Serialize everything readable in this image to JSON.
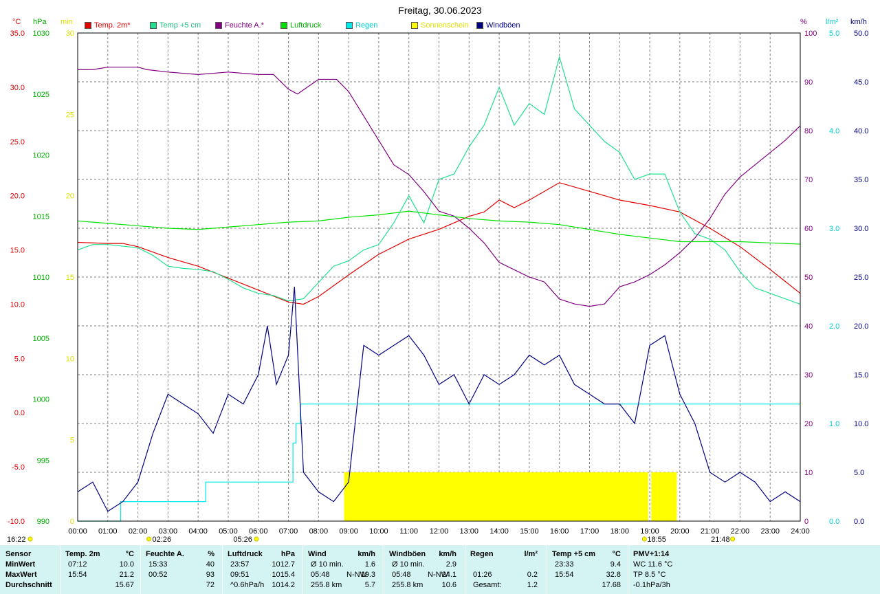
{
  "title": "Freitag, 30.06.2023",
  "axis_units": {
    "temp": "°C",
    "pressure": "hPa",
    "sunshine": "min",
    "humidity": "%",
    "rain": "l/m²",
    "wind": "km/h"
  },
  "colors": {
    "temp2m": "#e00000",
    "temp5cm": "#20e090",
    "humidity": "#800080",
    "pressure": "#00e000",
    "rain": "#00e8e8",
    "sunshine": "#ffff00",
    "gusts": "#000080",
    "stats_bg": "#d4f4f4"
  },
  "legend": [
    {
      "label": "Temp. 2m*",
      "color": "#e00000",
      "text_color": "#e00000"
    },
    {
      "label": "Temp +5 cm",
      "color": "#20e090",
      "text_color": "#20c080"
    },
    {
      "label": "Feuchte A.*",
      "color": "#800080",
      "text_color": "#800080"
    },
    {
      "label": "Luftdruck",
      "color": "#00e000",
      "text_color": "#00b000"
    },
    {
      "label": "Regen",
      "color": "#00e8e8",
      "text_color": "#00d0d0"
    },
    {
      "label": "Sonnenschein",
      "color": "#ffff00",
      "text_color": "#e0e000"
    },
    {
      "label": "Windböen",
      "color": "#000080",
      "text_color": "#000080"
    }
  ],
  "markers": {
    "sunrise": "02:26",
    "moonset": "05:26",
    "sunset": "18:55",
    "moonrise_left": "16:22",
    "moonrise_right": "21:48"
  },
  "chart_data": {
    "type": "line",
    "x_ticks": [
      "00:00",
      "01:00",
      "02:00",
      "03:00",
      "04:00",
      "05:00",
      "06:00",
      "07:00",
      "08:00",
      "09:00",
      "10:00",
      "11:00",
      "12:00",
      "13:00",
      "14:00",
      "15:00",
      "16:00",
      "17:00",
      "18:00",
      "19:00",
      "20:00",
      "21:00",
      "22:00",
      "23:00",
      "24:00"
    ],
    "xlim": [
      0,
      24
    ],
    "axes": {
      "temp": {
        "ylim": [
          -10,
          35
        ],
        "ticks": [
          "-10.0",
          "-5.0",
          "0.0",
          "5.0",
          "10.0",
          "15.0",
          "20.0",
          "25.0",
          "30.0",
          "35.0"
        ]
      },
      "pressure": {
        "ylim": [
          990,
          1030
        ],
        "ticks": [
          "990",
          "995",
          "1000",
          "1005",
          "1010",
          "1015",
          "1020",
          "1025",
          "1030"
        ]
      },
      "sunshine": {
        "ylim": [
          0,
          30
        ],
        "ticks": [
          "0",
          "5",
          "10",
          "15",
          "20",
          "25",
          "30"
        ]
      },
      "humidity": {
        "ylim": [
          0,
          100
        ],
        "ticks": [
          "0",
          "10",
          "20",
          "30",
          "40",
          "50",
          "60",
          "70",
          "80",
          "90",
          "100"
        ]
      },
      "rain": {
        "ylim": [
          0,
          5
        ],
        "ticks": [
          "0.0",
          "1.0",
          "2.0",
          "3.0",
          "4.0",
          "5.0"
        ]
      },
      "wind": {
        "ylim": [
          0,
          50
        ],
        "ticks": [
          "0.0",
          "5.0",
          "10.0",
          "15.0",
          "20.0",
          "25.0",
          "30.0",
          "35.0",
          "40.0",
          "45.0",
          "50.0"
        ]
      }
    },
    "series": [
      {
        "name": "Temp. 2m*",
        "axis": "temp",
        "x": [
          0,
          1,
          1.5,
          2,
          3,
          4,
          5,
          6,
          7,
          7.5,
          8,
          9,
          10,
          11,
          12,
          13,
          13.5,
          14,
          14.5,
          15,
          16,
          17,
          18,
          19,
          20,
          21,
          22,
          23,
          24
        ],
        "y": [
          15.7,
          15.6,
          15.6,
          15.3,
          14.3,
          13.5,
          12.4,
          11.3,
          10.2,
          10.0,
          10.7,
          12.7,
          14.6,
          16.0,
          16.9,
          18.1,
          18.5,
          19.6,
          18.9,
          19.6,
          21.2,
          20.4,
          19.6,
          19.1,
          18.5,
          17.0,
          15.3,
          13.2,
          11.0
        ]
      },
      {
        "name": "Temp +5 cm",
        "axis": "temp",
        "x": [
          0,
          0.5,
          1,
          2,
          2.5,
          3,
          3.5,
          4,
          4.5,
          5,
          5.5,
          6,
          6.5,
          7,
          7.5,
          8,
          8.5,
          9,
          9.5,
          10,
          10.5,
          11,
          11.5,
          12,
          12.5,
          13,
          13.5,
          14,
          14.5,
          15,
          15.5,
          16,
          16.5,
          17,
          17.5,
          18,
          18.5,
          19,
          19.5,
          20,
          20.5,
          21,
          21.5,
          22,
          22.5,
          23,
          23.5,
          24
        ],
        "y": [
          15.0,
          15.5,
          15.5,
          15.2,
          14.5,
          13.5,
          13.3,
          13.2,
          13.0,
          12.3,
          11.5,
          11.0,
          10.8,
          10.3,
          10.5,
          12.0,
          13.5,
          14.0,
          15.0,
          15.5,
          17.5,
          20.0,
          17.5,
          21.5,
          22.0,
          24.5,
          26.5,
          30.0,
          26.5,
          28.5,
          27.5,
          32.8,
          28.0,
          26.5,
          25.0,
          24.0,
          21.5,
          22.0,
          22.0,
          18.5,
          16.5,
          16.0,
          15.0,
          13.0,
          11.5,
          11.0,
          10.5,
          10.0
        ]
      },
      {
        "name": "Feuchte A.*",
        "axis": "humidity",
        "x": [
          0,
          0.5,
          1,
          2,
          2.3,
          3,
          4,
          5,
          6,
          6.5,
          7,
          7.3,
          8,
          8.6,
          9,
          9.5,
          10,
          10.5,
          11,
          11.5,
          12,
          12.5,
          13,
          13.5,
          14,
          14.5,
          15,
          15.5,
          16,
          16.5,
          17,
          17.5,
          18,
          18.5,
          19,
          19.5,
          20,
          20.5,
          21,
          21.5,
          22,
          22.5,
          23,
          23.5,
          24
        ],
        "y": [
          92.5,
          92.5,
          93,
          93,
          92.5,
          92,
          91.5,
          92,
          91.5,
          91.5,
          88.5,
          87.5,
          90.5,
          90.5,
          88,
          83,
          78,
          73,
          71,
          67.5,
          63.5,
          62.5,
          60,
          57,
          53,
          51.5,
          50,
          49,
          45.5,
          44.5,
          44,
          44.5,
          48,
          49,
          50.5,
          52.5,
          55,
          58,
          62,
          67,
          70.5,
          73,
          75.5,
          78,
          81
        ]
      },
      {
        "name": "Luftdruck",
        "axis": "pressure",
        "x": [
          0,
          1,
          2,
          3,
          4,
          5,
          6,
          7,
          8,
          9,
          10,
          11,
          12,
          13,
          14,
          15,
          16,
          17,
          18,
          19,
          20,
          21,
          22,
          23,
          24
        ],
        "y": [
          1014.6,
          1014.4,
          1014.2,
          1014.0,
          1013.9,
          1014.1,
          1014.3,
          1014.5,
          1014.6,
          1014.9,
          1015.1,
          1015.4,
          1015.1,
          1014.8,
          1014.6,
          1014.5,
          1014.3,
          1013.9,
          1013.5,
          1013.2,
          1012.9,
          1012.9,
          1012.9,
          1012.8,
          1012.7
        ]
      },
      {
        "name": "Regen",
        "axis": "rain",
        "step": true,
        "x": [
          0,
          1.43,
          2.6,
          4.0,
          4.25,
          7.0,
          7.15,
          7.25,
          7.4,
          24
        ],
        "y": [
          0,
          0.2,
          0.2,
          0.2,
          0.4,
          0.4,
          0.8,
          1.0,
          1.2,
          1.2
        ]
      },
      {
        "name": "Windböen",
        "axis": "wind",
        "x": [
          0,
          0.5,
          1,
          1.5,
          2,
          2.5,
          3,
          3.5,
          4,
          4.5,
          5,
          5.5,
          6,
          6.3,
          6.6,
          7,
          7.2,
          7.5,
          8,
          8.5,
          9,
          9.5,
          10,
          10.5,
          11,
          11.5,
          12,
          12.5,
          13,
          13.5,
          14,
          14.5,
          15,
          15.5,
          16,
          16.5,
          17,
          17.5,
          18,
          18.5,
          19,
          19.5,
          20,
          20.5,
          21,
          21.5,
          22,
          22.5,
          23,
          23.5,
          24
        ],
        "y": [
          3,
          4,
          1,
          2,
          4,
          9,
          13,
          12,
          11,
          9,
          13,
          12,
          15,
          20,
          14,
          17,
          24,
          5,
          3,
          2,
          4,
          18,
          17,
          18,
          19,
          17,
          14,
          15,
          12,
          15,
          14,
          15,
          17,
          16,
          17,
          14,
          13,
          12,
          12,
          10,
          18,
          19,
          13,
          10,
          5,
          4,
          5,
          4,
          2,
          3,
          2
        ]
      }
    ],
    "sunshine": {
      "axis": "sunshine",
      "segments": [
        [
          8.85,
          18.95
        ],
        [
          19.05,
          19.9
        ]
      ],
      "value": 3
    }
  },
  "stats": {
    "columns": [
      {
        "header": "Sensor",
        "unit": "",
        "rows": [
          "MinWert",
          "MaxWert",
          "Durchschnitt"
        ]
      },
      {
        "header": "Temp. 2m",
        "unit": "°C",
        "times": [
          "07:12",
          "15:54",
          ""
        ],
        "values": [
          "10.0",
          "21.2",
          "15.67"
        ]
      },
      {
        "header": "Feuchte A.",
        "unit": "%",
        "times": [
          "15:33",
          "00:52",
          ""
        ],
        "values": [
          "40",
          "93",
          "72"
        ]
      },
      {
        "header": "Luftdruck",
        "unit": "hPa",
        "times": [
          "23:57",
          "09:51",
          "^0.6hPa/h"
        ],
        "values": [
          "1012.7",
          "1015.4",
          "1014.2"
        ]
      },
      {
        "header": "Wind",
        "unit": "km/h",
        "times": [
          "Ø 10 min.",
          "05:48",
          "255.8 km"
        ],
        "mid": [
          "",
          "N-NW",
          ""
        ],
        "values": [
          "1.6",
          "19.3",
          "5.7"
        ]
      },
      {
        "header": "Windböen",
        "unit": "km/h",
        "times": [
          "Ø 10 min.",
          "05:48",
          "255.8 km"
        ],
        "mid": [
          "",
          "N-NW",
          ""
        ],
        "values": [
          "2.9",
          "24.1",
          "10.6"
        ]
      },
      {
        "header": "Regen",
        "unit": "l/m²",
        "times": [
          "",
          "01:26",
          "Gesamt:"
        ],
        "values": [
          "",
          "0.2",
          "1.2"
        ]
      },
      {
        "header": "Temp +5 cm",
        "unit": "°C",
        "times": [
          "23:33",
          "15:54",
          ""
        ],
        "values": [
          "9.4",
          "32.8",
          "17.68"
        ]
      },
      {
        "header": "PMV+1:14",
        "unit": "",
        "rows": [
          "WC 11.6 °C",
          "TP 8.5 °C",
          "-0.1hPa/3h"
        ]
      }
    ]
  }
}
